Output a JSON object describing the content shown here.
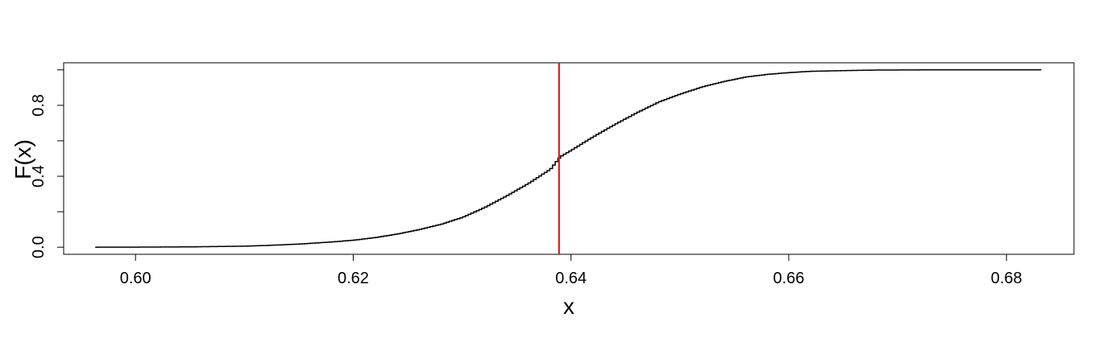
{
  "chart_data": {
    "type": "line",
    "subtype": "empirical-cdf-step",
    "title": "",
    "xlabel": "x",
    "ylabel": "F(x)",
    "xlim": [
      0.5934,
      0.6862
    ],
    "ylim": [
      -0.04,
      1.04
    ],
    "xticks": [
      "0.60",
      "0.62",
      "0.64",
      "0.66",
      "0.68"
    ],
    "xtick_values": [
      0.6,
      0.62,
      0.64,
      0.66,
      0.68
    ],
    "yticks": [
      "0.0",
      "0.4",
      "0.8"
    ],
    "ytick_values": [
      0.0,
      0.4,
      0.8
    ],
    "yticks_minor": [
      0.2,
      0.6,
      1.0
    ],
    "grid": false,
    "legend": "none",
    "colors": {
      "step_line": "#000000",
      "vline": "#e41a1c",
      "frame": "#000000"
    },
    "series": [
      {
        "x": [
          0.5963,
          0.6,
          0.605,
          0.61,
          0.612,
          0.615,
          0.618,
          0.62,
          0.622,
          0.624,
          0.626,
          0.628,
          0.63,
          0.632,
          0.634,
          0.636,
          0.638,
          0.6389,
          0.64,
          0.642,
          0.644,
          0.646,
          0.648,
          0.65,
          0.652,
          0.654,
          0.656,
          0.658,
          0.66,
          0.662,
          0.665,
          0.668,
          0.672,
          0.676,
          0.68,
          0.6832
        ],
        "y": [
          0.0,
          0.0005,
          0.002,
          0.006,
          0.01,
          0.018,
          0.03,
          0.04,
          0.055,
          0.075,
          0.1,
          0.13,
          0.17,
          0.225,
          0.29,
          0.36,
          0.44,
          0.51,
          0.55,
          0.625,
          0.695,
          0.76,
          0.82,
          0.865,
          0.905,
          0.935,
          0.96,
          0.975,
          0.985,
          0.992,
          0.996,
          0.999,
          1.0,
          1.0,
          1.0,
          1.0
        ]
      }
    ],
    "vline_x": 0.6389
  }
}
